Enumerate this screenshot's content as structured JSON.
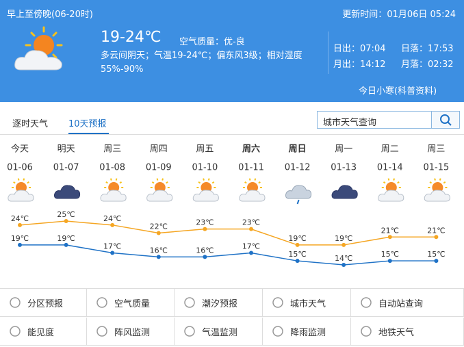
{
  "header": {
    "period": "早上至傍晚(06-20时)",
    "update_label": "更新时间：",
    "update_time": "01月06日 05:24",
    "temperature": "19-24℃",
    "air_label": "空气质量：",
    "air_value": "优-良",
    "description": "多云间阴天；气温19-24℃；偏东风3级；相对湿度55%-90%",
    "sun_moon": [
      {
        "label": "日出：",
        "time": "07:04"
      },
      {
        "label": "日落：",
        "time": "17:53"
      },
      {
        "label": "月出：",
        "time": "14:12"
      },
      {
        "label": "月落：",
        "time": "02:32"
      }
    ],
    "solar_term": "今日小寒(科普资料)"
  },
  "tabs": [
    "逐时天气",
    "10天预报"
  ],
  "search": "城市天气查询",
  "chart_data": {
    "type": "line",
    "categories": [
      "今天",
      "明天",
      "周三",
      "周四",
      "周五",
      "周六",
      "周日",
      "周一",
      "周二",
      "周三"
    ],
    "dates": [
      "01-06",
      "01-07",
      "01-08",
      "01-09",
      "01-10",
      "01-11",
      "01-12",
      "01-13",
      "01-14",
      "01-15"
    ],
    "series": [
      {
        "color": "#f5a623",
        "values": [
          24,
          25,
          24,
          22,
          23,
          23,
          19,
          19,
          21,
          21
        ],
        "value_labels": [
          "24℃",
          "25℃",
          "24℃",
          "22℃",
          "23℃",
          "23℃",
          "19℃",
          "19℃",
          "21℃",
          "21℃"
        ]
      },
      {
        "color": "#1f72c6",
        "values": [
          19,
          19,
          17,
          16,
          16,
          17,
          15,
          14,
          15,
          15
        ],
        "value_labels": [
          "19℃",
          "19℃",
          "17℃",
          "16℃",
          "16℃",
          "17℃",
          "15℃",
          "14℃",
          "15℃",
          "15℃"
        ]
      }
    ]
  },
  "menu": [
    [
      "分区预报",
      "空气质量",
      "潮汐预报",
      "城市天气",
      "自动站查询"
    ],
    [
      "能见度",
      "阵风监测",
      "气温监测",
      "降雨监测",
      "地铁天气"
    ]
  ]
}
